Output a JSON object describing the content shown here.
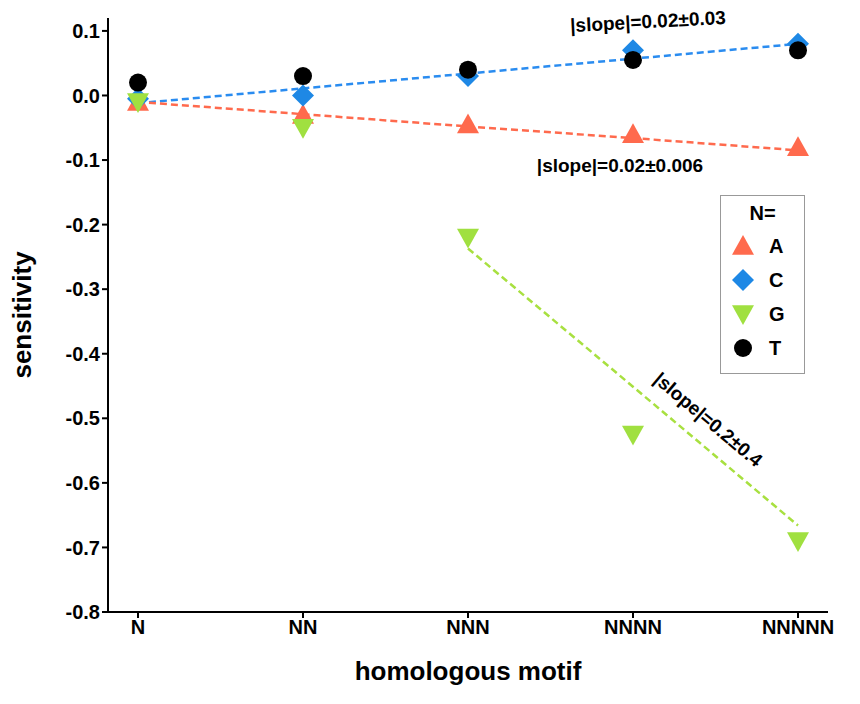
{
  "chart_data": {
    "type": "scatter",
    "x_label": "homologous motif",
    "y_label": "sensitivity",
    "categories": [
      "N",
      "NN",
      "NNN",
      "NNNN",
      "NNNNN"
    ],
    "series": [
      {
        "name": "A",
        "color": "#ff6a4d",
        "marker": "triangle-up",
        "values": [
          -0.01,
          -0.03,
          -0.045,
          -0.06,
          -0.08
        ]
      },
      {
        "name": "C",
        "color": "#1e88e5",
        "marker": "diamond",
        "values": [
          -0.005,
          0.0,
          0.03,
          0.07,
          0.08
        ]
      },
      {
        "name": "G",
        "color": "#a0e040",
        "marker": "triangle-down",
        "values": [
          -0.01,
          -0.05,
          -0.22,
          -0.525,
          -0.69
        ]
      },
      {
        "name": "T",
        "color": "#000000",
        "marker": "circle",
        "values": [
          0.02,
          0.03,
          0.04,
          0.055,
          0.07
        ]
      }
    ],
    "fits": [
      {
        "label": "|slope|=0.02±0.03",
        "color": "#2a8cf0",
        "line_style": "dashed",
        "values": [
          -0.012,
          0.011,
          0.034,
          0.057,
          0.08
        ]
      },
      {
        "label": "|slope|=0.02±0.006",
        "color": "#ff6a4d",
        "line_style": "dashed",
        "values": [
          -0.01,
          -0.029,
          -0.048,
          -0.066,
          -0.085
        ]
      },
      {
        "label": "|slope|=0.2±0.4",
        "color": "#a8e040",
        "line_style": "dashed",
        "values": [
          null,
          null,
          -0.237,
          -0.451,
          -0.666
        ]
      }
    ],
    "legend": "right",
    "legend_title": "N=",
    "ylim": [
      -0.8,
      0.12
    ],
    "yticks": [
      -0.8,
      -0.7,
      -0.6,
      -0.5,
      -0.4,
      -0.3,
      -0.2,
      -0.1,
      {
        "value": 0,
        "label": "0.0"
      },
      0.1
    ],
    "grid": false
  }
}
